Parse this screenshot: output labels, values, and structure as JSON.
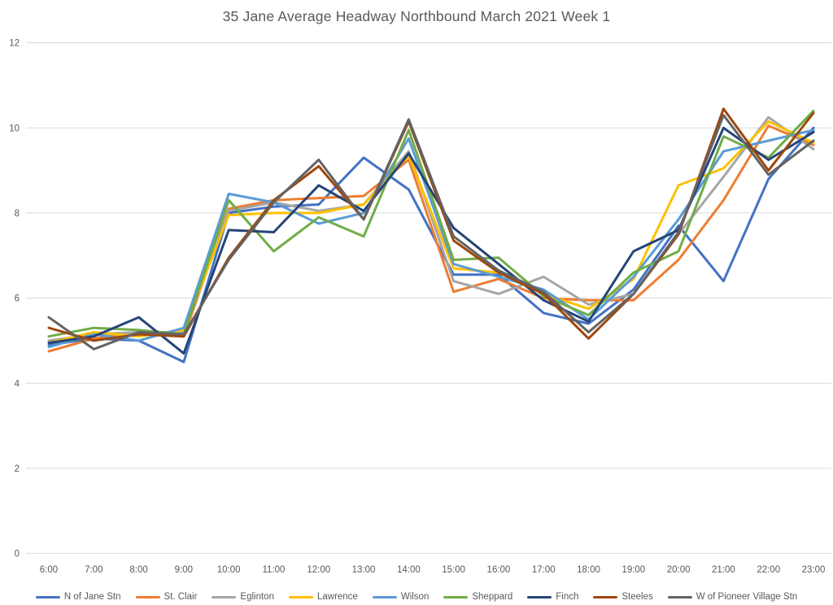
{
  "chart_data": {
    "type": "line",
    "title": "35 Jane  Average Headway Northbound March 2021 Week 1",
    "xlabel": "",
    "ylabel": "",
    "ylim": [
      0,
      12
    ],
    "yticks": [
      0,
      2,
      4,
      6,
      8,
      10,
      12
    ],
    "grid": "horizontal",
    "legend_position": "bottom",
    "background_color": "#ffffff",
    "gridline_color": "#d9d9d9",
    "axis_label_color": "#595959",
    "title_color": "#595959",
    "categories": [
      "6:00",
      "7:00",
      "8:00",
      "9:00",
      "10:00",
      "11:00",
      "12:00",
      "13:00",
      "14:00",
      "15:00",
      "16:00",
      "17:00",
      "18:00",
      "19:00",
      "20:00",
      "21:00",
      "22:00",
      "23:00"
    ],
    "series": [
      {
        "name": "N of Jane Stn",
        "color": "#4472C4",
        "values": [
          4.9,
          5.05,
          5.0,
          4.5,
          8.0,
          8.15,
          8.2,
          9.3,
          8.55,
          6.55,
          6.55,
          5.65,
          5.4,
          6.2,
          7.7,
          6.4,
          8.8,
          10.0
        ]
      },
      {
        "name": "St. Clair",
        "color": "#ED7D31",
        "values": [
          4.75,
          5.05,
          5.2,
          5.1,
          8.1,
          8.3,
          8.35,
          8.4,
          9.25,
          6.15,
          6.45,
          6.0,
          5.95,
          5.95,
          6.9,
          8.3,
          10.05,
          9.6
        ]
      },
      {
        "name": "Eglinton",
        "color": "#A5A5A5",
        "values": [
          5.0,
          5.15,
          5.2,
          5.2,
          8.05,
          8.25,
          8.05,
          8.2,
          9.45,
          6.4,
          6.1,
          6.5,
          5.85,
          6.1,
          7.5,
          8.85,
          10.25,
          9.5
        ]
      },
      {
        "name": "Lawrence",
        "color": "#FFC000",
        "values": [
          4.95,
          5.2,
          5.1,
          5.25,
          7.95,
          8.0,
          8.0,
          8.2,
          9.35,
          6.7,
          6.6,
          6.1,
          5.75,
          6.45,
          8.65,
          9.05,
          10.15,
          9.65
        ]
      },
      {
        "name": "Wilson",
        "color": "#5B9BD5",
        "values": [
          4.85,
          5.15,
          5.0,
          5.3,
          8.45,
          8.25,
          7.75,
          8.0,
          9.75,
          6.8,
          6.5,
          6.2,
          5.5,
          6.5,
          7.85,
          9.45,
          9.7,
          9.95
        ]
      },
      {
        "name": "Sheppard",
        "color": "#70AD47",
        "values": [
          5.1,
          5.3,
          5.25,
          5.15,
          8.3,
          7.1,
          7.9,
          7.45,
          9.95,
          6.9,
          6.95,
          6.05,
          5.6,
          6.6,
          7.1,
          9.8,
          9.3,
          10.4
        ]
      },
      {
        "name": "Finch",
        "color": "#264478",
        "values": [
          4.95,
          5.1,
          5.55,
          4.7,
          7.6,
          7.55,
          8.65,
          8.05,
          9.4,
          7.65,
          6.8,
          5.95,
          5.45,
          7.1,
          7.6,
          10.0,
          9.25,
          9.9
        ]
      },
      {
        "name": "Steeles",
        "color": "#9E480E",
        "values": [
          5.3,
          5.0,
          5.15,
          5.1,
          6.95,
          8.3,
          9.1,
          7.85,
          10.15,
          7.35,
          6.6,
          6.1,
          5.05,
          6.1,
          7.5,
          10.45,
          9.0,
          10.35
        ]
      },
      {
        "name": "W of Pioneer Village Stn",
        "color": "#636363",
        "values": [
          5.55,
          4.8,
          5.2,
          5.15,
          6.9,
          8.25,
          9.25,
          7.85,
          10.2,
          7.45,
          6.65,
          6.15,
          5.2,
          6.1,
          7.55,
          10.3,
          8.9,
          9.7
        ]
      }
    ]
  }
}
